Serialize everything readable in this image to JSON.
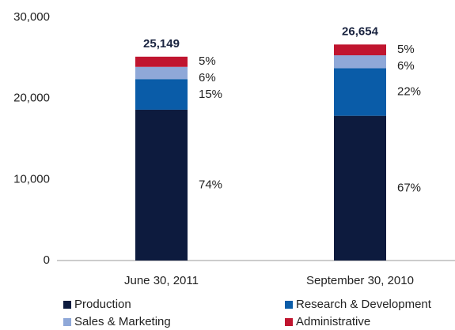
{
  "chart_data": {
    "type": "stacked_bar",
    "categories": [
      "June 30, 2011",
      "September 30, 2010"
    ],
    "series": [
      {
        "name": "Production",
        "color": "#0d1b3e",
        "values": [
          18610,
          17858
        ],
        "share_labels": [
          "74%",
          "67%"
        ]
      },
      {
        "name": "Research & Development",
        "color": "#0a5ca8",
        "values": [
          3772,
          5864
        ],
        "share_labels": [
          "15%",
          "22%"
        ]
      },
      {
        "name": "Sales & Marketing",
        "color": "#8fa8d8",
        "values": [
          1509,
          1599
        ],
        "share_labels": [
          "6%",
          "6%"
        ]
      },
      {
        "name": "Administrative",
        "color": "#c0152f",
        "values": [
          1258,
          1333
        ],
        "share_labels": [
          "5%",
          "5%"
        ]
      }
    ],
    "totals": [
      25149,
      26654
    ],
    "total_labels": [
      "25,149",
      "26,654"
    ],
    "ylim": [
      0,
      30000
    ],
    "yticks": [
      0,
      {
        "value": 10000,
        "label": "10,000"
      },
      {
        "value": 20000,
        "label": "20,000"
      },
      {
        "value": 30000,
        "label": "30,000"
      }
    ],
    "grid": false
  }
}
